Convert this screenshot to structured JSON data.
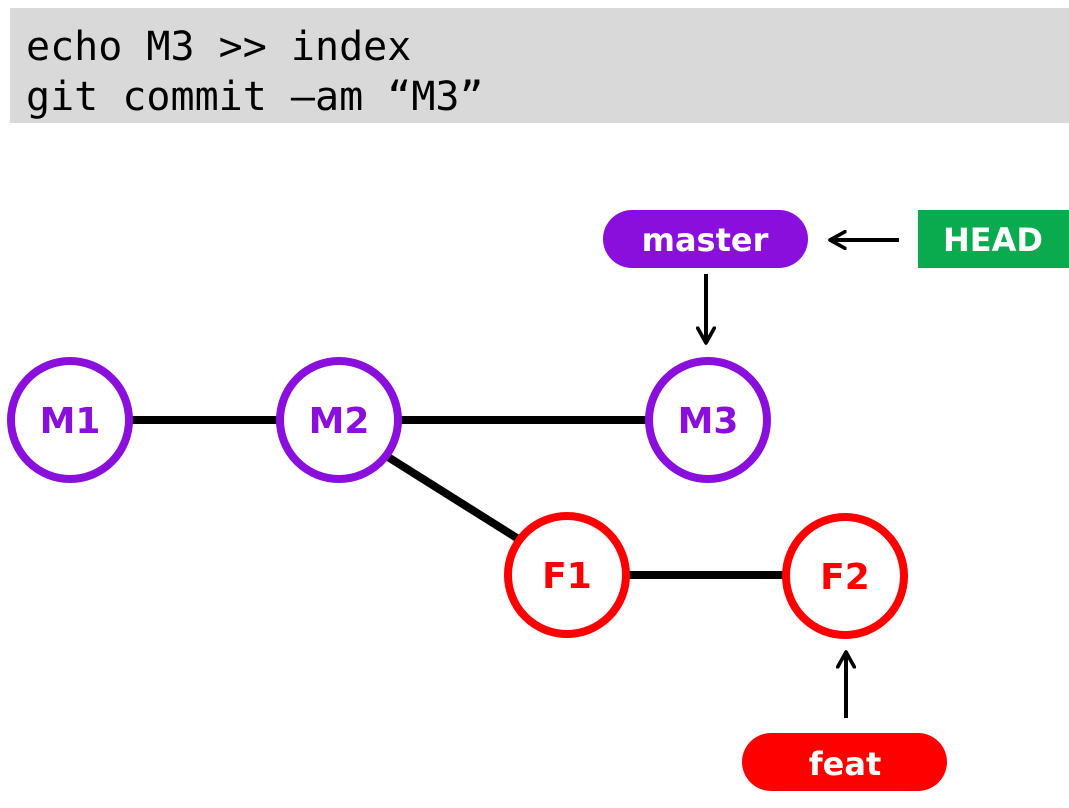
{
  "code": {
    "lines": [
      "echo M3 >> index",
      "git commit –am “M3”"
    ]
  },
  "colors": {
    "code_background": "#d9d9d9",
    "master": "#8a0fdc",
    "feature": "#ff0000",
    "head": "#0aab4f",
    "edge": "#000000"
  },
  "commits": [
    {
      "id": "M1",
      "label": "M1",
      "branch": "master"
    },
    {
      "id": "M2",
      "label": "M2",
      "branch": "master"
    },
    {
      "id": "M3",
      "label": "M3",
      "branch": "master"
    },
    {
      "id": "F1",
      "label": "F1",
      "branch": "feature"
    },
    {
      "id": "F2",
      "label": "F2",
      "branch": "feature"
    }
  ],
  "edges": [
    {
      "from": "M1",
      "to": "M2"
    },
    {
      "from": "M2",
      "to": "M3"
    },
    {
      "from": "M2",
      "to": "F1"
    },
    {
      "from": "F1",
      "to": "F2"
    }
  ],
  "refs": {
    "master": {
      "label": "master",
      "points_to": "M3"
    },
    "feat": {
      "label": "feat",
      "points_to": "F2"
    },
    "head": {
      "label": "HEAD",
      "points_to": "master"
    }
  }
}
